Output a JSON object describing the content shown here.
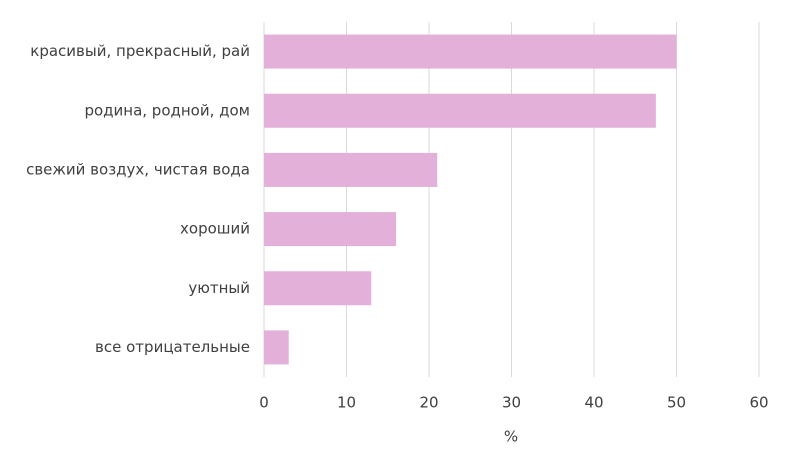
{
  "chart_data": {
    "type": "barh",
    "categories": [
      "красивый, прекрасный, рай",
      "родина, родной, дом",
      "свежий воздух, чистая вода",
      "хороший",
      "уютный",
      "все отрицательные"
    ],
    "values": [
      50,
      47.5,
      21,
      16,
      13,
      3
    ],
    "color": "#e3b0d9",
    "xlabel": "%",
    "xlim": [
      0,
      60
    ],
    "xticks": [
      0,
      10,
      20,
      30,
      40,
      50,
      60
    ],
    "grid": true
  }
}
